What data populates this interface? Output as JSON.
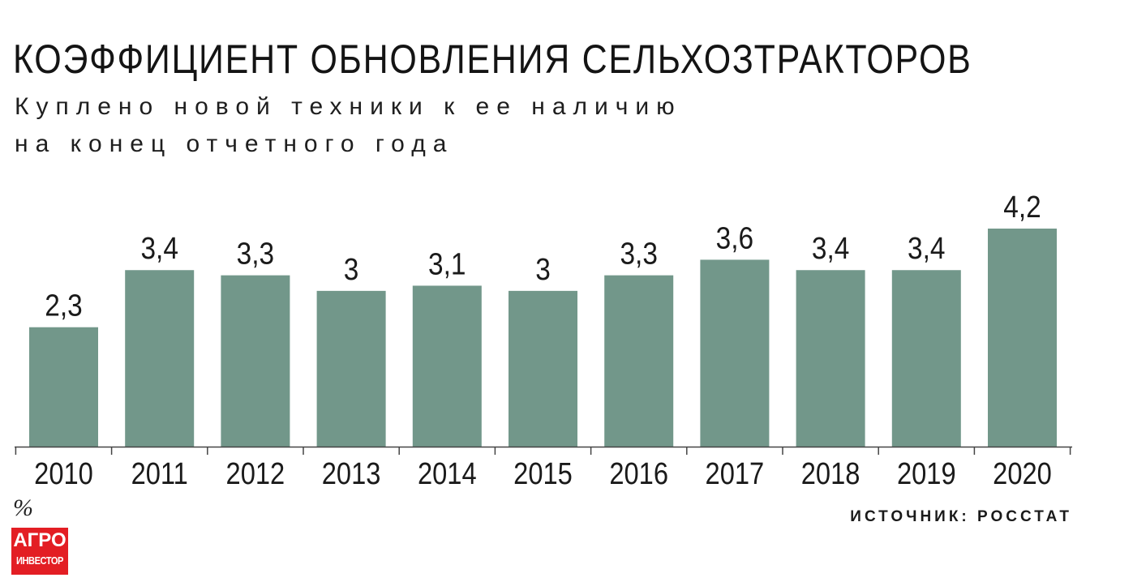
{
  "chart_data": {
    "type": "bar",
    "title": "КОЭФФИЦИЕНТ ОБНОВЛЕНИЯ СЕЛЬХОЗТРАКТОРОВ",
    "subtitle_lines": [
      "Куплено новой техники к ее наличию",
      "на конец отчетного года"
    ],
    "categories": [
      "2010",
      "2011",
      "2012",
      "2013",
      "2014",
      "2015",
      "2016",
      "2017",
      "2018",
      "2019",
      "2020"
    ],
    "values": [
      2.3,
      3.4,
      3.3,
      3.0,
      3.1,
      3.0,
      3.3,
      3.6,
      3.4,
      3.4,
      4.2
    ],
    "value_labels": [
      "2,3",
      "3,4",
      "3,3",
      "3",
      "3,1",
      "3",
      "3,3",
      "3,6",
      "3,4",
      "3,4",
      "4,2"
    ],
    "unit": "%",
    "ylim": [
      0,
      4.2
    ],
    "grid": false,
    "bar_color": "#72978a"
  },
  "source": "ИСТОЧНИК: РОССТАТ",
  "logo": {
    "line1": "АГРО",
    "line2": "ИНВЕСТОР",
    "color": "#e31e24"
  }
}
